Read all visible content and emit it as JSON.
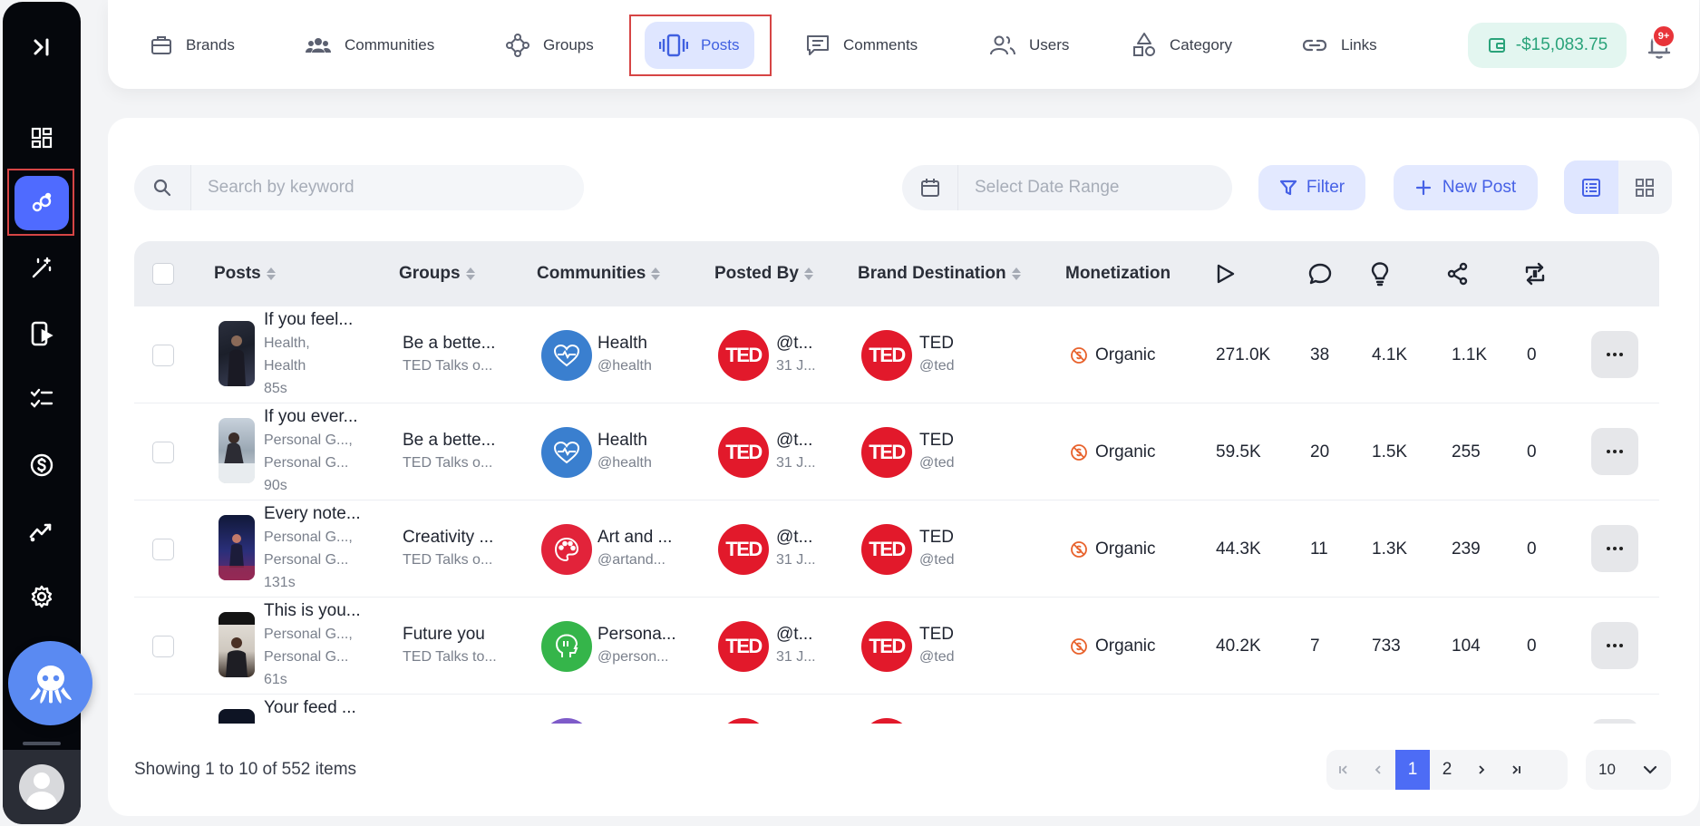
{
  "nav": {
    "items": [
      {
        "label": "Brands",
        "icon": "briefcase-icon"
      },
      {
        "label": "Communities",
        "icon": "people-icon"
      },
      {
        "label": "Groups",
        "icon": "groups-icon"
      },
      {
        "label": "Posts",
        "icon": "vibrate-icon"
      },
      {
        "label": "Comments",
        "icon": "comment-icon"
      },
      {
        "label": "Users",
        "icon": "users-icon"
      },
      {
        "label": "Category",
        "icon": "shapes-icon"
      },
      {
        "label": "Links",
        "icon": "link-icon"
      }
    ],
    "active": "Posts",
    "balance": "-$15,083.75",
    "notification_badge": "9+"
  },
  "toolbar": {
    "search_placeholder": "Search by keyword",
    "date_placeholder": "Select Date Range",
    "filter_label": "Filter",
    "new_post_label": "New Post"
  },
  "table": {
    "headers": {
      "posts": "Posts",
      "groups": "Groups",
      "communities": "Communities",
      "posted_by": "Posted By",
      "brand_destination": "Brand Destination",
      "monetization": "Monetization"
    },
    "rows": [
      {
        "title": "If you feel...",
        "tags1": "Health,",
        "tags2": "Health",
        "duration": "85s",
        "group": "Be a bette...",
        "group_sub": "TED Talks o...",
        "community": "Health",
        "community_handle": "@health",
        "posted_by": "@t...",
        "posted_date": "31 J...",
        "brand": "TED",
        "brand_handle": "@ted",
        "monetization": "Organic",
        "views": "271.0K",
        "comments": "38",
        "likes": "4.1K",
        "shares": "1.1K",
        "reposts": "0"
      },
      {
        "title": "If you ever...",
        "tags1": "Personal G...,",
        "tags2": "Personal G...",
        "duration": "90s",
        "group": "Be a bette...",
        "group_sub": "TED Talks o...",
        "community": "Health",
        "community_handle": "@health",
        "posted_by": "@t...",
        "posted_date": "31 J...",
        "brand": "TED",
        "brand_handle": "@ted",
        "monetization": "Organic",
        "views": "59.5K",
        "comments": "20",
        "likes": "1.5K",
        "shares": "255",
        "reposts": "0"
      },
      {
        "title": "Every note...",
        "tags1": "Personal G...,",
        "tags2": "Personal G...",
        "duration": "131s",
        "group": "Creativity ...",
        "group_sub": "TED Talks o...",
        "community": "Art and ...",
        "community_handle": "@artand...",
        "posted_by": "@t...",
        "posted_date": "31 J...",
        "brand": "TED",
        "brand_handle": "@ted",
        "monetization": "Organic",
        "views": "44.3K",
        "comments": "11",
        "likes": "1.3K",
        "shares": "239",
        "reposts": "0"
      },
      {
        "title": "This is you...",
        "tags1": "Personal G...,",
        "tags2": "Personal G...",
        "duration": "61s",
        "group": "Future you",
        "group_sub": "TED Talks to...",
        "community": "Persona...",
        "community_handle": "@person...",
        "posted_by": "@t...",
        "posted_date": "31 J...",
        "brand": "TED",
        "brand_handle": "@ted",
        "monetization": "Organic",
        "views": "40.2K",
        "comments": "7",
        "likes": "733",
        "shares": "104",
        "reposts": "0"
      },
      {
        "title": "Your feed ..."
      }
    ]
  },
  "logo_text": "TED",
  "footer": {
    "showing": "Showing 1 to 10 of 552 items",
    "pages": [
      "1",
      "2"
    ],
    "per_page": "10"
  },
  "colors": {
    "accent": "#4f6bff",
    "ted_red": "#e2192b",
    "balance_green": "#2aa37a",
    "health_blue": "#3a7fcf",
    "art_red": "#e2233a",
    "personal_green": "#35b54a"
  }
}
